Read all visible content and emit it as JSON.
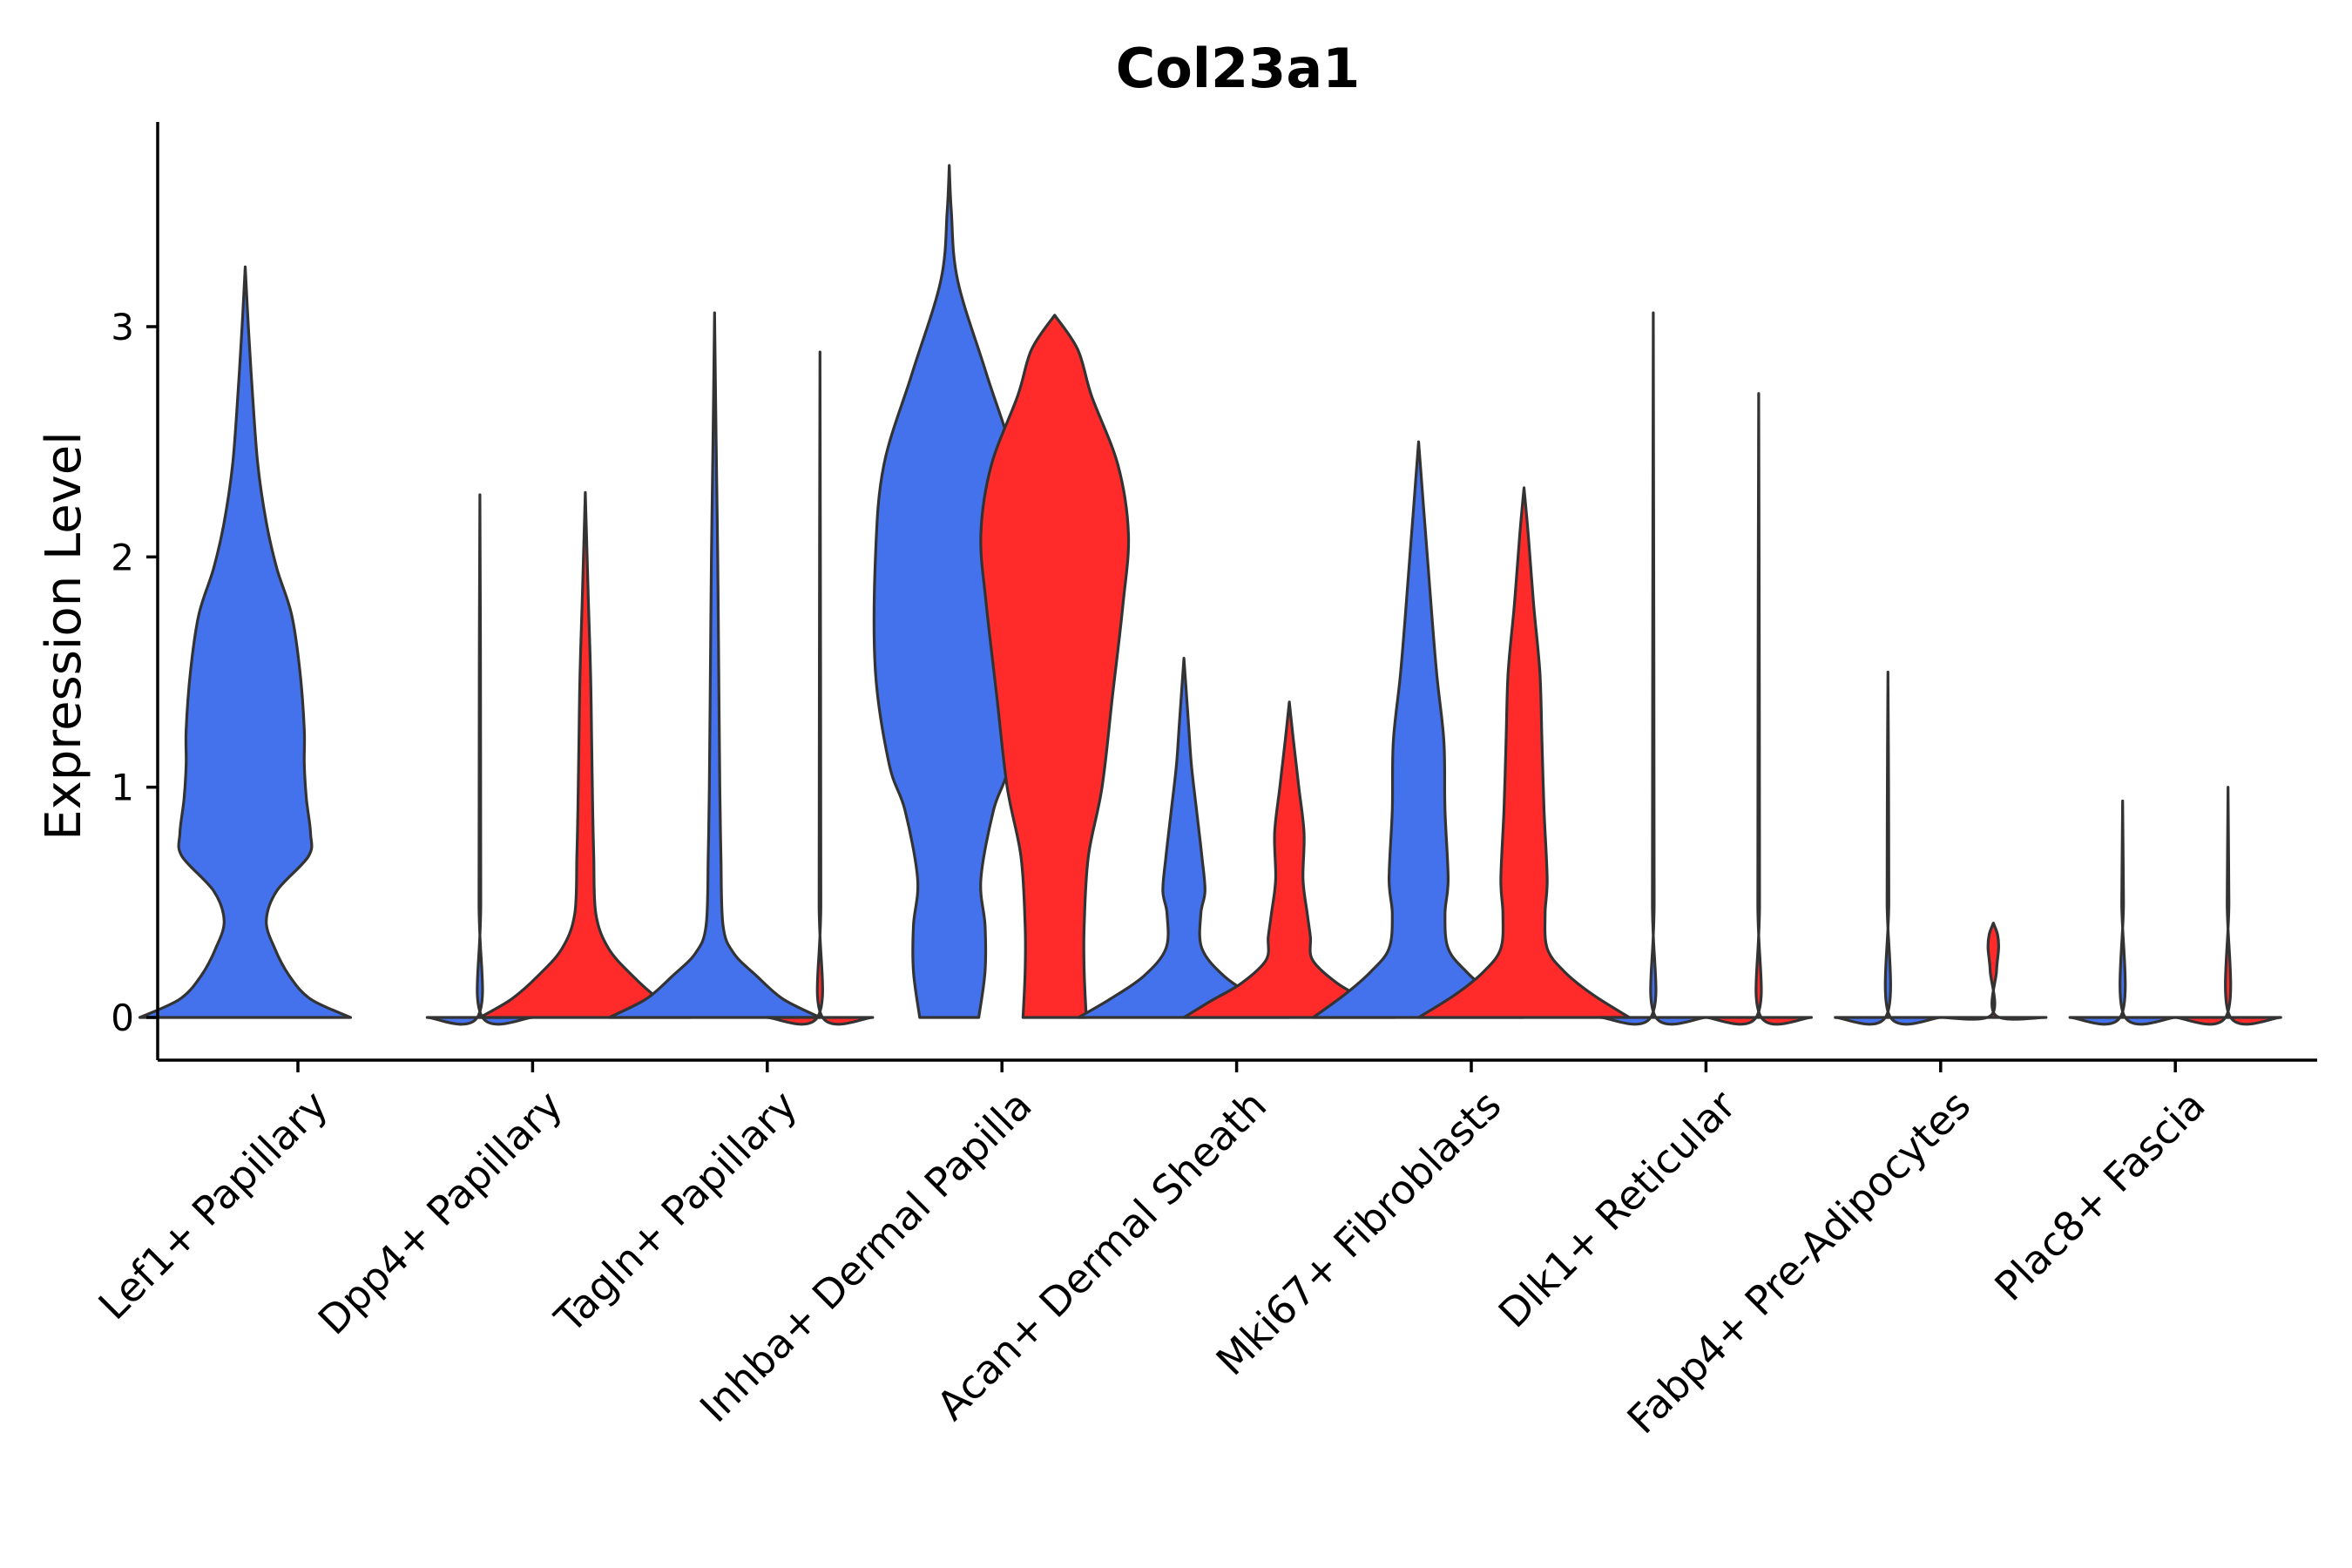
{
  "chart_data": {
    "type": "violin",
    "title": "Col23a1",
    "xlabel": "",
    "ylabel": "Expression Level",
    "ylim": [
      -0.19,
      3.9
    ],
    "yticks": [
      0,
      1,
      2,
      3
    ],
    "grid": false,
    "legend": "none",
    "colors": {
      "group_a": "#4472EC",
      "group_b": "#FF2B2B",
      "outline": "#333333"
    },
    "categories": [
      "Lef1+ Papillary",
      "Dpp4+ Papillary",
      "Tagln+ Papillary",
      "Inhba+ Dermal Papilla",
      "Acan+ Dermal Sheath",
      "Mki67+ Fibroblasts",
      "Dlk1+ Reticular",
      "Fabp4+ Pre-Adipocytes",
      "Plac8+ Fascia"
    ],
    "violins": [
      {
        "category": "Lef1+ Papillary",
        "side": "left",
        "color": "#4472EC",
        "min": 0,
        "max": 3.26,
        "profile": [
          [
            0,
            1.0
          ],
          [
            0.08,
            0.62
          ],
          [
            0.18,
            0.42
          ],
          [
            0.3,
            0.28
          ],
          [
            0.42,
            0.2
          ],
          [
            0.55,
            0.3
          ],
          [
            0.7,
            0.6
          ],
          [
            0.8,
            0.62
          ],
          [
            0.95,
            0.58
          ],
          [
            1.1,
            0.56
          ],
          [
            1.25,
            0.56
          ],
          [
            1.5,
            0.52
          ],
          [
            1.75,
            0.44
          ],
          [
            1.95,
            0.3
          ],
          [
            2.15,
            0.2
          ],
          [
            2.4,
            0.12
          ],
          [
            2.7,
            0.07
          ],
          [
            3.0,
            0.03
          ],
          [
            3.26,
            0.0
          ]
        ]
      },
      {
        "category": "Dpp4+ Papillary",
        "side": "left",
        "color": "#4472EC",
        "min": 0,
        "max": 2.27,
        "profile": [
          [
            0,
            0.5
          ],
          [
            0.01,
            0.012
          ],
          [
            0.5,
            0.008
          ],
          [
            1.5,
            0.006
          ],
          [
            2.27,
            0.0
          ]
        ]
      },
      {
        "category": "Dpp4+ Papillary",
        "side": "right",
        "color": "#FF2B2B",
        "min": 0,
        "max": 2.28,
        "profile": [
          [
            0,
            1.0
          ],
          [
            0.08,
            0.7
          ],
          [
            0.18,
            0.45
          ],
          [
            0.3,
            0.22
          ],
          [
            0.45,
            0.1
          ],
          [
            0.7,
            0.08
          ],
          [
            0.9,
            0.07
          ],
          [
            1.2,
            0.06
          ],
          [
            1.5,
            0.05
          ],
          [
            1.8,
            0.03
          ],
          [
            2.28,
            0.0
          ]
        ]
      },
      {
        "category": "Tagln+ Papillary",
        "side": "left",
        "color": "#4472EC",
        "min": 0,
        "max": 3.06,
        "profile": [
          [
            0,
            1.0
          ],
          [
            0.08,
            0.65
          ],
          [
            0.18,
            0.4
          ],
          [
            0.28,
            0.18
          ],
          [
            0.4,
            0.08
          ],
          [
            0.7,
            0.06
          ],
          [
            1.0,
            0.05
          ],
          [
            1.5,
            0.04
          ],
          [
            2.0,
            0.03
          ],
          [
            2.5,
            0.015
          ],
          [
            3.06,
            0.0
          ]
        ]
      },
      {
        "category": "Tagln+ Papillary",
        "side": "right",
        "color": "#FF2B2B",
        "min": 0,
        "max": 2.89,
        "profile": [
          [
            0,
            0.5
          ],
          [
            0.01,
            0.012
          ],
          [
            0.5,
            0.008
          ],
          [
            1.5,
            0.006
          ],
          [
            2.89,
            0.0
          ]
        ]
      },
      {
        "category": "Inhba+ Dermal Papilla",
        "side": "left",
        "color": "#4472EC",
        "min": 0,
        "max": 3.7,
        "profile": [
          [
            0,
            0.28
          ],
          [
            0.2,
            0.34
          ],
          [
            0.4,
            0.34
          ],
          [
            0.6,
            0.3
          ],
          [
            0.9,
            0.42
          ],
          [
            1.1,
            0.57
          ],
          [
            1.5,
            0.7
          ],
          [
            2.0,
            0.7
          ],
          [
            2.4,
            0.62
          ],
          [
            2.8,
            0.35
          ],
          [
            3.2,
            0.08
          ],
          [
            3.5,
            0.02
          ],
          [
            3.7,
            0.0
          ]
        ]
      },
      {
        "category": "Inhba+ Dermal Papilla",
        "side": "right",
        "color": "#FF2B2B",
        "min": 0,
        "max": 3.05,
        "profile": [
          [
            0,
            0.3
          ],
          [
            0.2,
            0.28
          ],
          [
            0.4,
            0.28
          ],
          [
            0.7,
            0.32
          ],
          [
            1.0,
            0.45
          ],
          [
            1.4,
            0.55
          ],
          [
            1.8,
            0.65
          ],
          [
            2.1,
            0.7
          ],
          [
            2.4,
            0.6
          ],
          [
            2.7,
            0.35
          ],
          [
            2.9,
            0.22
          ],
          [
            3.05,
            0.0
          ]
        ]
      },
      {
        "category": "Acan+ Dermal Sheath",
        "side": "left",
        "color": "#4472EC",
        "min": 0,
        "max": 1.56,
        "profile": [
          [
            0,
            1.0
          ],
          [
            0.08,
            0.7
          ],
          [
            0.18,
            0.38
          ],
          [
            0.3,
            0.17
          ],
          [
            0.45,
            0.16
          ],
          [
            0.55,
            0.2
          ],
          [
            0.7,
            0.17
          ],
          [
            0.9,
            0.12
          ],
          [
            1.1,
            0.07
          ],
          [
            1.3,
            0.04
          ],
          [
            1.56,
            0.0
          ]
        ]
      },
      {
        "category": "Acan+ Dermal Sheath",
        "side": "right",
        "color": "#FF2B2B",
        "min": 0,
        "max": 1.37,
        "profile": [
          [
            0,
            1.0
          ],
          [
            0.07,
            0.75
          ],
          [
            0.15,
            0.45
          ],
          [
            0.25,
            0.22
          ],
          [
            0.35,
            0.2
          ],
          [
            0.45,
            0.17
          ],
          [
            0.6,
            0.13
          ],
          [
            0.8,
            0.14
          ],
          [
            1.0,
            0.09
          ],
          [
            1.2,
            0.04
          ],
          [
            1.37,
            0.0
          ]
        ]
      },
      {
        "category": "Mki67+ Fibroblasts",
        "side": "left",
        "color": "#4472EC",
        "min": 0,
        "max": 2.5,
        "profile": [
          [
            0,
            1.0
          ],
          [
            0.1,
            0.7
          ],
          [
            0.2,
            0.45
          ],
          [
            0.3,
            0.28
          ],
          [
            0.45,
            0.25
          ],
          [
            0.6,
            0.28
          ],
          [
            0.9,
            0.25
          ],
          [
            1.2,
            0.24
          ],
          [
            1.5,
            0.17
          ],
          [
            1.9,
            0.1
          ],
          [
            2.2,
            0.05
          ],
          [
            2.5,
            0.0
          ]
        ]
      },
      {
        "category": "Mki67+ Fibroblasts",
        "side": "right",
        "color": "#FF2B2B",
        "min": 0,
        "max": 2.3,
        "profile": [
          [
            0,
            1.0
          ],
          [
            0.1,
            0.65
          ],
          [
            0.2,
            0.38
          ],
          [
            0.3,
            0.22
          ],
          [
            0.45,
            0.2
          ],
          [
            0.6,
            0.22
          ],
          [
            0.9,
            0.19
          ],
          [
            1.2,
            0.17
          ],
          [
            1.5,
            0.15
          ],
          [
            1.8,
            0.09
          ],
          [
            2.1,
            0.04
          ],
          [
            2.3,
            0.0
          ]
        ]
      },
      {
        "category": "Dlk1+ Reticular",
        "side": "left",
        "color": "#4472EC",
        "min": 0,
        "max": 3.06,
        "profile": [
          [
            0,
            0.5
          ],
          [
            0.01,
            0.012
          ],
          [
            0.5,
            0.008
          ],
          [
            1.5,
            0.006
          ],
          [
            3.06,
            0.0
          ]
        ]
      },
      {
        "category": "Dlk1+ Reticular",
        "side": "right",
        "color": "#FF2B2B",
        "min": 0,
        "max": 2.71,
        "profile": [
          [
            0,
            0.5
          ],
          [
            0.01,
            0.012
          ],
          [
            0.5,
            0.008
          ],
          [
            1.5,
            0.006
          ],
          [
            2.71,
            0.0
          ]
        ]
      },
      {
        "category": "Fabp4+ Pre-Adipocytes",
        "side": "left",
        "color": "#4472EC",
        "min": 0,
        "max": 1.5,
        "profile": [
          [
            0,
            0.5
          ],
          [
            0.01,
            0.012
          ],
          [
            0.5,
            0.008
          ],
          [
            1.0,
            0.006
          ],
          [
            1.5,
            0.0
          ]
        ]
      },
      {
        "category": "Fabp4+ Pre-Adipocytes",
        "side": "right",
        "color": "#FF2B2B",
        "min": 0,
        "max": 0.41,
        "profile": [
          [
            0,
            0.5
          ],
          [
            0.01,
            0.02
          ],
          [
            0.2,
            0.03
          ],
          [
            0.3,
            0.05
          ],
          [
            0.36,
            0.04
          ],
          [
            0.41,
            0.0
          ]
        ]
      },
      {
        "category": "Plac8+ Fascia",
        "side": "left",
        "color": "#4472EC",
        "min": 0,
        "max": 0.94,
        "profile": [
          [
            0,
            0.5
          ],
          [
            0.01,
            0.012
          ],
          [
            0.5,
            0.008
          ],
          [
            0.94,
            0.0
          ]
        ]
      },
      {
        "category": "Plac8+ Fascia",
        "side": "right",
        "color": "#FF2B2B",
        "min": 0,
        "max": 1.0,
        "profile": [
          [
            0,
            0.5
          ],
          [
            0.01,
            0.012
          ],
          [
            0.5,
            0.008
          ],
          [
            1.0,
            0.0
          ]
        ]
      }
    ]
  }
}
